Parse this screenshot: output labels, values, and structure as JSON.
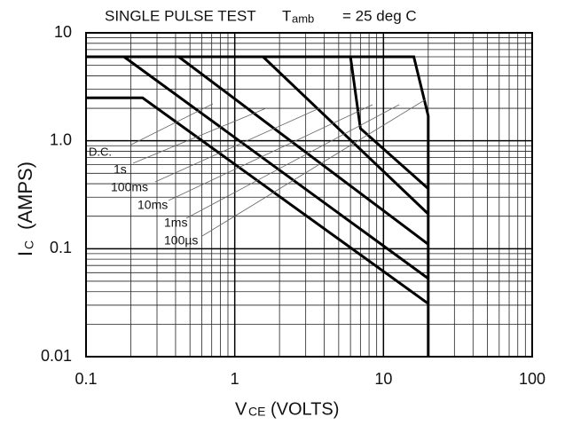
{
  "chart_data": {
    "type": "line",
    "title": "SINGLE PULSE TEST",
    "condition": {
      "symbol": "T",
      "subscript": "amb",
      "text": "= 25 deg C"
    },
    "x_label": {
      "symbol": "V",
      "subscript": "CE",
      "text": "(VOLTS)"
    },
    "y_label": {
      "symbol": "I",
      "subscript": "C",
      "text": "(AMPS)"
    },
    "log_x": true,
    "log_y": true,
    "grid": true,
    "xlim": [
      0.1,
      100
    ],
    "ylim": [
      0.01,
      10
    ],
    "xticks": [
      0.1,
      1,
      10,
      100
    ],
    "yticks": [
      0.01,
      0.1,
      {
        "value": 1,
        "label": "1.0"
      },
      10
    ],
    "series": [
      {
        "name": "D.C.",
        "color": "#000000",
        "x": [
          0.1,
          0.24,
          20
        ],
        "values": [
          2.5,
          2.5,
          0.031
        ]
      },
      {
        "name": "1s",
        "color": "#000000",
        "x": [
          0.18,
          20
        ],
        "values": [
          6,
          0.053
        ]
      },
      {
        "name": "100ms",
        "color": "#000000",
        "x": [
          0.42,
          20
        ],
        "values": [
          6,
          0.11
        ]
      },
      {
        "name": "10ms",
        "color": "#000000",
        "x": [
          1.55,
          20
        ],
        "values": [
          6,
          0.21
        ]
      },
      {
        "name": "1ms",
        "color": "#000000",
        "x": [
          6,
          7,
          20
        ],
        "values": [
          6,
          1.3,
          0.36
        ]
      },
      {
        "name": "100µs",
        "color": "#000000",
        "x": [
          0.1,
          16,
          20,
          20
        ],
        "values": [
          6,
          6,
          1.7,
          0.01
        ]
      }
    ]
  }
}
